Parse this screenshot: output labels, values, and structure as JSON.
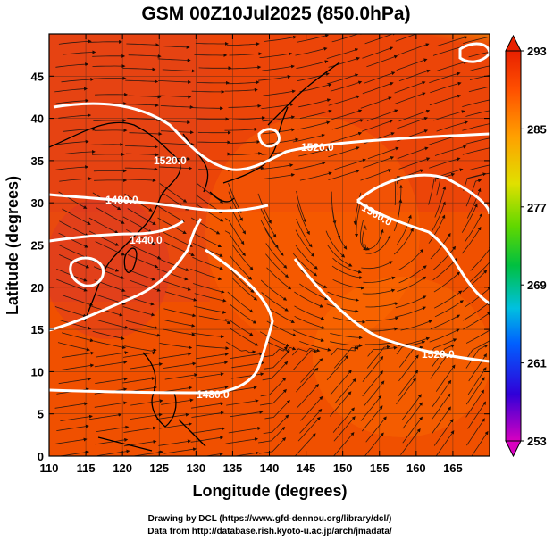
{
  "title": "GSM 00Z10Jul2025 (850.0hPa)",
  "x_axis": {
    "label": "Longitude (degrees)",
    "range": [
      110,
      170
    ],
    "ticks": [
      "110",
      "115",
      "120",
      "125",
      "130",
      "135",
      "140",
      "145",
      "150",
      "155",
      "160",
      "165"
    ]
  },
  "y_axis": {
    "label": "Latitude  (degrees)",
    "range": [
      0,
      50
    ],
    "ticks": [
      "0",
      "5",
      "10",
      "15",
      "20",
      "25",
      "30",
      "35",
      "40",
      "45"
    ]
  },
  "colorbar": {
    "ticks": [
      "253",
      "261",
      "269",
      "277",
      "285",
      "293"
    ],
    "range": [
      253,
      293
    ],
    "colors": [
      "#d800c0",
      "#3000d8",
      "#0080ff",
      "#00d0c0",
      "#00c040",
      "#60d800",
      "#e0e000",
      "#ffa000",
      "#ff5000",
      "#e82000"
    ]
  },
  "contours": [
    {
      "label": "1520.0",
      "color": "#ffffff"
    },
    {
      "label": "1520.0",
      "color": "#ffffff"
    },
    {
      "label": "1480.0",
      "color": "#ffffff"
    },
    {
      "label": "1560.0",
      "color": "#ffffff"
    },
    {
      "label": "1440.0",
      "color": "#ffffff"
    },
    {
      "label": "1520.0",
      "color": "#ffffff"
    },
    {
      "label": "1480.0",
      "color": "#ffffff"
    }
  ],
  "credits": {
    "line1": "Drawing by DCL (https://www.gfd-dennou.org/library/dcl/)",
    "line2": "Data from http://database.rish.kyoto-u.ac.jp/arch/jmadata/"
  }
}
